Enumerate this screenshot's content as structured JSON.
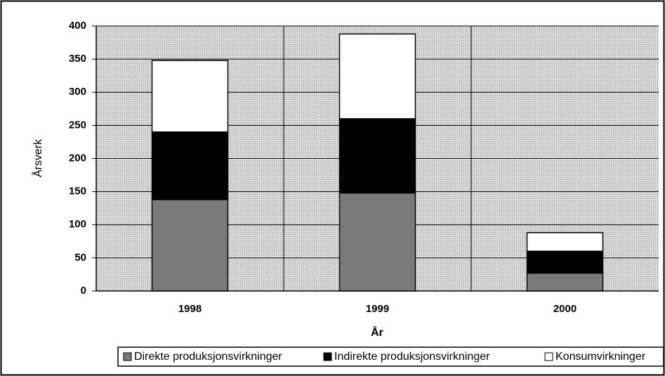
{
  "chart_data": {
    "type": "stacked_bar",
    "categories": [
      "1998",
      "1999",
      "2000"
    ],
    "series": [
      {
        "name": "Direkte produksjonsvirkninger",
        "color": "#7a7a7a",
        "values": [
          138,
          148,
          27
        ]
      },
      {
        "name": "Indirekte produksjonsvirkninger",
        "color": "#000000",
        "values": [
          102,
          112,
          33
        ]
      },
      {
        "name": "Konsumvirkninger",
        "color": "#ffffff",
        "values": [
          108,
          128,
          28
        ]
      }
    ],
    "xlabel": "År",
    "ylabel": "Årsverk",
    "ylim": [
      0,
      400
    ],
    "yticks": [
      0,
      50,
      100,
      150,
      200,
      250,
      300,
      350,
      400
    ],
    "grid": true,
    "legend": "bottom"
  }
}
